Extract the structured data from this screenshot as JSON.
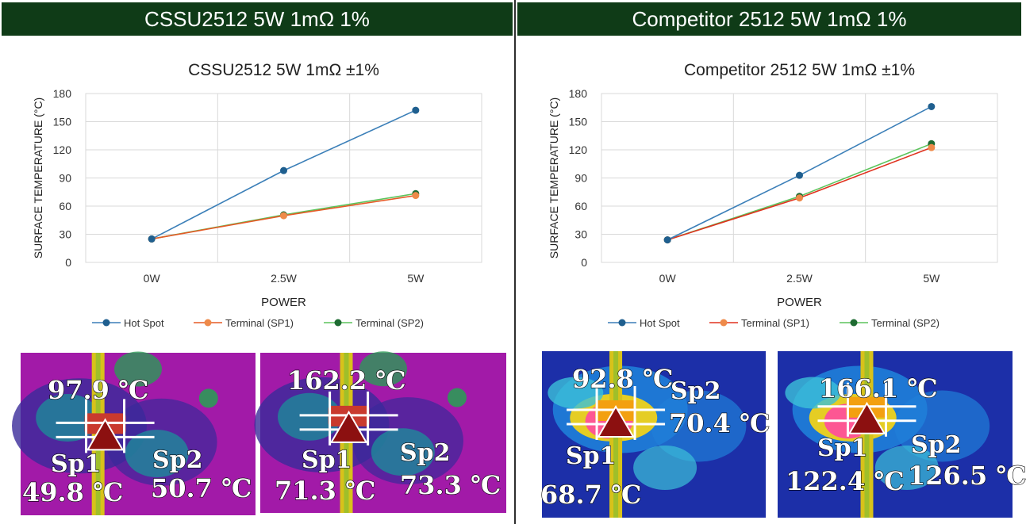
{
  "headers": {
    "left": "CSSU2512 5W 1mΩ 1%",
    "right": "Competitor 2512 5W 1mΩ 1%"
  },
  "colors": {
    "header_bg": "#0f3b17",
    "hot_spot": "#3b7fb8",
    "terminal_sp1": "#e55a26",
    "terminal_sp2": "#3aa13a"
  },
  "chart_data": [
    {
      "type": "line",
      "title": "CSSU2512 5W 1mΩ ±1%",
      "xlabel": "POWER",
      "ylabel": "SURFACE TEMPERATURE (°C)",
      "categories": [
        "0W",
        "2.5W",
        "5W"
      ],
      "ylim": [
        0,
        180
      ],
      "yticks": [
        0,
        30,
        60,
        90,
        120,
        150,
        180
      ],
      "grid": true,
      "legend_position": "bottom",
      "series": [
        {
          "name": "Hot Spot",
          "values": [
            25,
            97.9,
            162.2
          ],
          "color": "#3b7fb8",
          "marker": "#1f5f8f"
        },
        {
          "name": "Terminal (SP1)",
          "values": [
            25,
            49.8,
            71.3
          ],
          "color": "#e55a26",
          "marker": "#ee8a4a"
        },
        {
          "name": "Terminal (SP2)",
          "values": [
            25,
            50.7,
            73.3
          ],
          "color": "#5cc45c",
          "marker": "#1e6b32"
        }
      ]
    },
    {
      "type": "line",
      "title": "Competitor 2512 5W 1mΩ ±1%",
      "xlabel": "POWER",
      "ylabel": "SURFACE TEMPERATURE (°C)",
      "categories": [
        "0W",
        "2.5W",
        "5W"
      ],
      "ylim": [
        0,
        180
      ],
      "yticks": [
        0,
        30,
        60,
        90,
        120,
        150,
        180
      ],
      "grid": true,
      "legend_position": "bottom",
      "series": [
        {
          "name": "Hot Spot",
          "values": [
            24,
            92.8,
            166.1
          ],
          "color": "#3b7fb8",
          "marker": "#1f5f8f"
        },
        {
          "name": "Terminal (SP1)",
          "values": [
            24,
            68.7,
            122.4
          ],
          "color": "#e0321e",
          "marker": "#ee8a4a"
        },
        {
          "name": "Terminal (SP2)",
          "values": [
            24,
            70.4,
            126.5
          ],
          "color": "#5cc45c",
          "marker": "#1e6b32"
        }
      ]
    }
  ],
  "thermal_images": [
    {
      "hot": "97.9 ℃",
      "sp1": "Sp1",
      "sp1_val": "49.8 ℃",
      "sp2": "Sp2",
      "sp2_val": "50.7 ℃"
    },
    {
      "hot": "162.2 ℃",
      "sp1": "Sp1",
      "sp1_val": "71.3 ℃",
      "sp2": "Sp2",
      "sp2_val": "73.3 ℃"
    },
    {
      "hot": "92.8 ℃",
      "sp1": "Sp1",
      "sp1_val": "68.7 ℃",
      "sp2": "Sp2",
      "sp2_val": "70.4 ℃"
    },
    {
      "hot": "166.1 ℃",
      "sp1": "Sp1",
      "sp1_val": "122.4 ℃",
      "sp2": "Sp2",
      "sp2_val": "126.5 ℃"
    }
  ]
}
